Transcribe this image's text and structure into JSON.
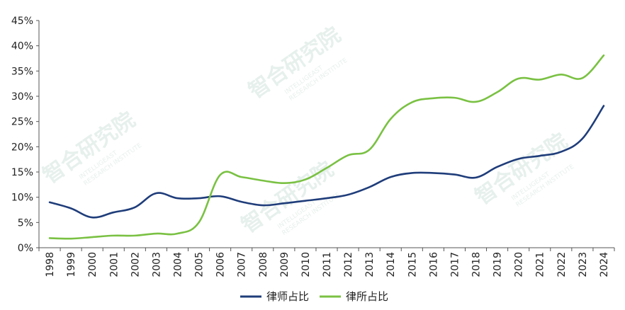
{
  "chart_data": {
    "type": "line",
    "categories": [
      "1998",
      "1999",
      "2000",
      "2001",
      "2002",
      "2003",
      "2004",
      "2005",
      "2006",
      "2007",
      "2008",
      "2009",
      "2010",
      "2011",
      "2012",
      "2013",
      "2014",
      "2015",
      "2016",
      "2017",
      "2018",
      "2019",
      "2020",
      "2021",
      "2022",
      "2023",
      "2024"
    ],
    "y_ticks": [
      "0%",
      "5%",
      "10%",
      "15%",
      "20%",
      "25%",
      "30%",
      "35%",
      "40%",
      "45%"
    ],
    "ylim": [
      0,
      45
    ],
    "series": [
      {
        "name": "律师占比",
        "color": "#1f3d7a",
        "values": [
          9.0,
          7.8,
          6.0,
          7.0,
          8.0,
          10.8,
          9.8,
          9.8,
          10.2,
          9.1,
          8.4,
          8.8,
          9.3,
          9.8,
          10.5,
          12.0,
          14.0,
          14.8,
          14.8,
          14.5,
          13.9,
          16.0,
          17.6,
          18.2,
          19.0,
          21.6,
          28.1
        ]
      },
      {
        "name": "律所占比",
        "color": "#7ac143",
        "values": [
          1.9,
          1.8,
          2.1,
          2.4,
          2.4,
          2.8,
          2.8,
          5.0,
          14.4,
          14.0,
          13.3,
          12.8,
          13.5,
          15.8,
          18.3,
          19.4,
          25.5,
          28.8,
          29.6,
          29.7,
          28.9,
          30.8,
          33.5,
          33.3,
          34.3,
          33.6,
          38.1
        ]
      }
    ],
    "legend_position": "bottom",
    "grid": false
  },
  "watermark": {
    "text_cn": "智合研究院",
    "text_en_1": "INTELLIGEAST",
    "text_en_2": "RESEARCH INSTITUTE"
  }
}
